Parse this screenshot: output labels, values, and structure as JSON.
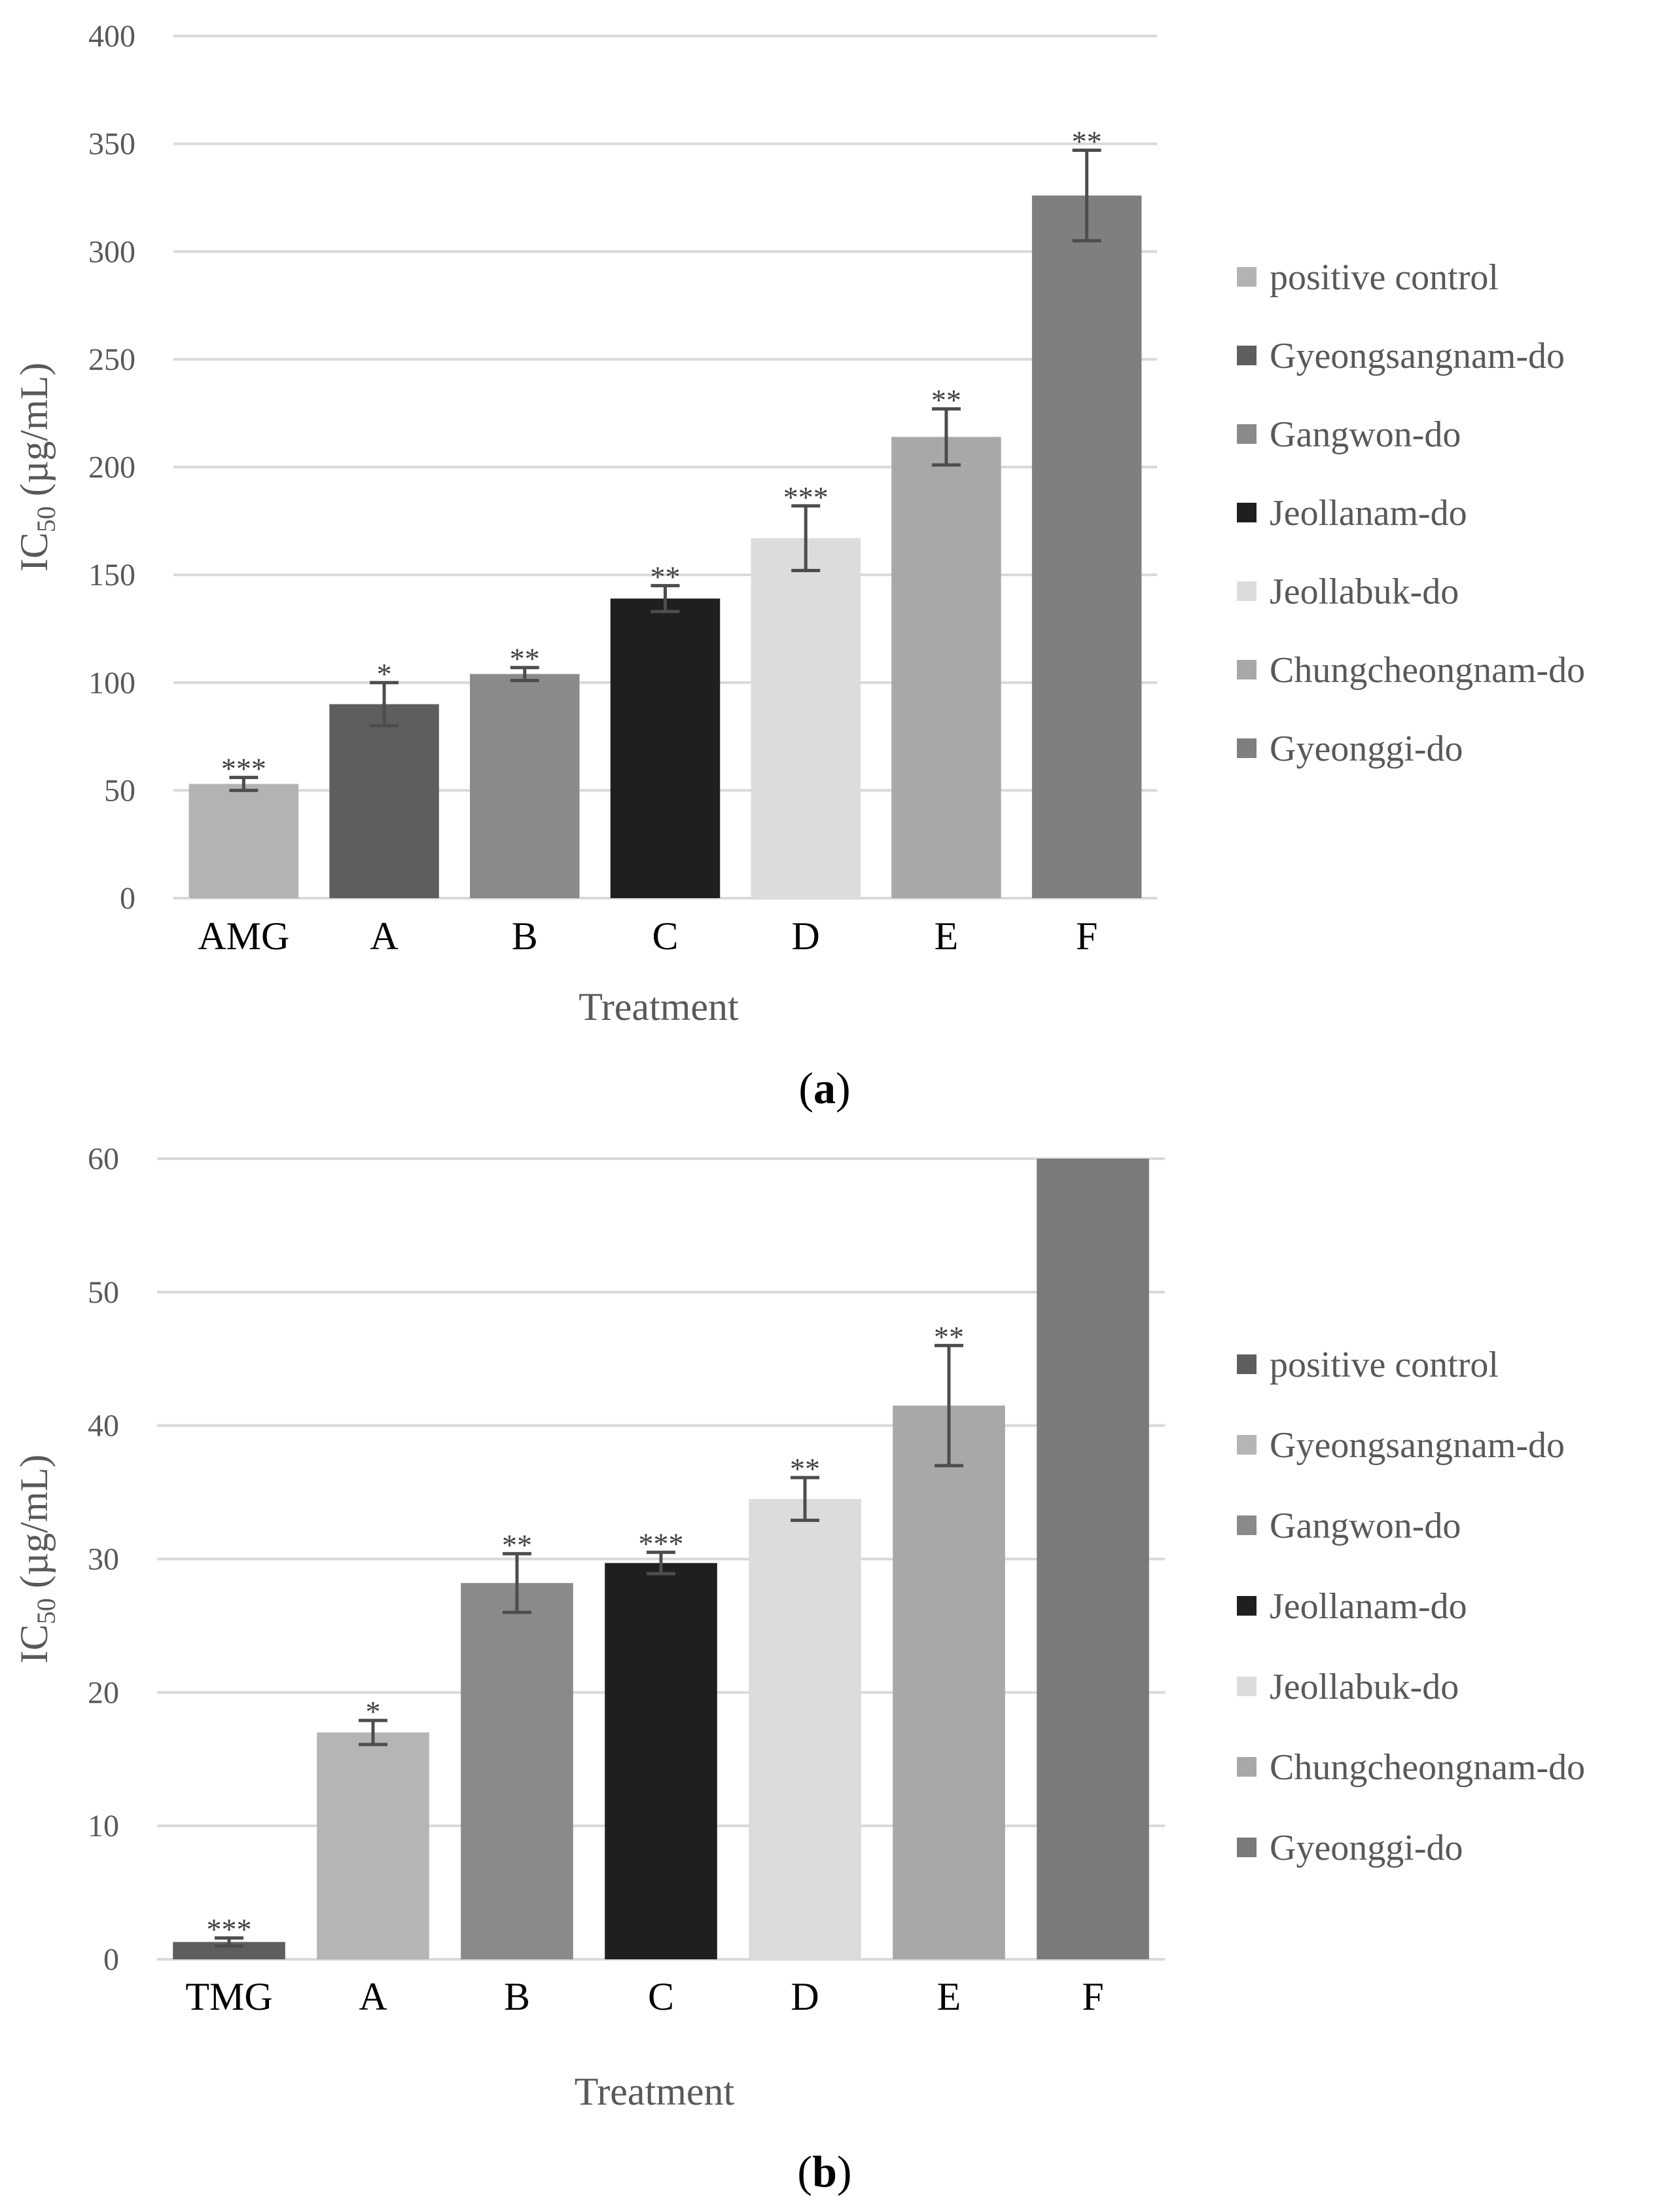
{
  "chart_data": [
    {
      "type": "bar",
      "panel_label": "a",
      "title": "",
      "xlabel": "Treatment",
      "ylabel_main": "IC",
      "ylabel_sub": "50",
      "ylabel_unit": " (µg/mL)",
      "ylim": [
        0,
        400
      ],
      "yticks": [
        0,
        50,
        100,
        150,
        200,
        250,
        300,
        350,
        400
      ],
      "grid": true,
      "legend_position": "right",
      "categories": [
        "AMG",
        "A",
        "B",
        "C",
        "D",
        "E",
        "F"
      ],
      "values": [
        53,
        90,
        104,
        139,
        167,
        214,
        326
      ],
      "errors": [
        3,
        10,
        3,
        6,
        15,
        13,
        21
      ],
      "significance": [
        "***",
        "*",
        "**",
        "**",
        "***",
        "**",
        "**"
      ],
      "series_names": [
        "positive control",
        "Gyeongsangnam-do",
        "Gangwon-do",
        "Jeollanam-do",
        "Jeollabuk-do",
        "Chungcheongnam-do",
        "Gyeonggi-do"
      ],
      "colors": [
        "#b3b3b3",
        "#5e5e5e",
        "#8a8a8a",
        "#1f1f1f",
        "#dcdcdc",
        "#a8a8a8",
        "#7f7f7f"
      ]
    },
    {
      "type": "bar",
      "panel_label": "b",
      "title": "",
      "xlabel": "Treatment",
      "ylabel_main": "IC",
      "ylabel_sub": "50",
      "ylabel_unit": " (µg/mL)",
      "ylim": [
        0,
        60
      ],
      "yticks": [
        0,
        10,
        20,
        30,
        40,
        50,
        60
      ],
      "grid": true,
      "legend_position": "right",
      "categories": [
        "TMG",
        "A",
        "B",
        "C",
        "D",
        "E",
        "F"
      ],
      "values": [
        1.3,
        17,
        28.2,
        29.7,
        34.5,
        41.5,
        60
      ],
      "errors": [
        0.3,
        0.9,
        2.2,
        0.8,
        1.6,
        4.5,
        null
      ],
      "significance": [
        "***",
        "*",
        "**",
        "***",
        "**",
        "**",
        ""
      ],
      "series_names": [
        "positive control",
        "Gyeongsangnam-do",
        "Gangwon-do",
        "Jeollanam-do",
        "Jeollabuk-do",
        "Chungcheongnam-do",
        "Gyeonggi-do"
      ],
      "colors": [
        "#5e5e5e",
        "#b5b5b5",
        "#8a8a8a",
        "#1f1f1f",
        "#dcdcdc",
        "#a8a8a8",
        "#7a7a7a"
      ]
    }
  ]
}
